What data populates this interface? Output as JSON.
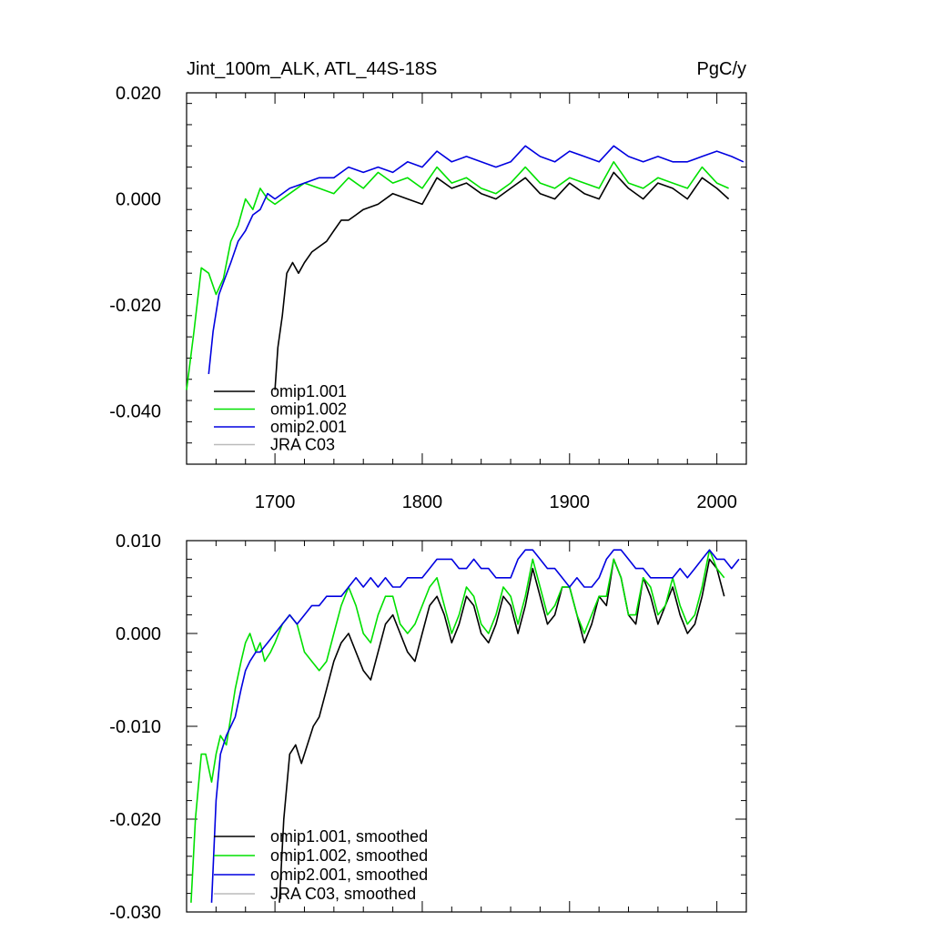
{
  "chart_data": [
    {
      "type": "line",
      "title": "Jint_100m_ALK, ATL_44S-18S",
      "units": "PgC/y",
      "xlim": [
        1640,
        2020
      ],
      "ylim": [
        -0.05,
        0.02
      ],
      "x_ticks": [
        1700,
        1800,
        1900,
        2000
      ],
      "x_tick_labels": [
        "1700",
        "1800",
        "1900",
        "2000"
      ],
      "y_ticks": [
        0.02,
        0.0,
        -0.02,
        -0.04
      ],
      "y_tick_labels": [
        "0.020",
        "0.000",
        "-0.020",
        "-0.040"
      ],
      "legend_position": "bottom-left",
      "series": [
        {
          "name": "omip1.001",
          "color": "#000000",
          "x": [
            1700,
            1702,
            1705,
            1708,
            1712,
            1716,
            1720,
            1725,
            1730,
            1735,
            1740,
            1745,
            1750,
            1755,
            1760,
            1770,
            1780,
            1790,
            1800,
            1810,
            1820,
            1830,
            1840,
            1850,
            1860,
            1870,
            1880,
            1890,
            1900,
            1910,
            1920,
            1930,
            1940,
            1950,
            1960,
            1970,
            1980,
            1990,
            2000,
            2008
          ],
          "y": [
            -0.036,
            -0.028,
            -0.022,
            -0.014,
            -0.012,
            -0.014,
            -0.012,
            -0.01,
            -0.009,
            -0.008,
            -0.006,
            -0.004,
            -0.004,
            -0.003,
            -0.002,
            -0.001,
            0.001,
            0.0,
            -0.001,
            0.004,
            0.002,
            0.003,
            0.001,
            0.0,
            0.002,
            0.004,
            0.001,
            0.0,
            0.003,
            0.001,
            0.0,
            0.005,
            0.002,
            0.0,
            0.003,
            0.002,
            0.0,
            0.004,
            0.002,
            0.0
          ]
        },
        {
          "name": "omip1.002",
          "color": "#00e000",
          "x": [
            1640,
            1645,
            1650,
            1655,
            1660,
            1665,
            1670,
            1675,
            1680,
            1685,
            1690,
            1695,
            1700,
            1710,
            1720,
            1730,
            1740,
            1750,
            1760,
            1770,
            1780,
            1790,
            1800,
            1810,
            1820,
            1830,
            1840,
            1850,
            1860,
            1870,
            1880,
            1890,
            1900,
            1910,
            1920,
            1930,
            1940,
            1950,
            1960,
            1970,
            1980,
            1990,
            2000,
            2008
          ],
          "y": [
            -0.036,
            -0.025,
            -0.013,
            -0.014,
            -0.018,
            -0.015,
            -0.008,
            -0.005,
            0.0,
            -0.002,
            0.002,
            0.0,
            -0.001,
            0.001,
            0.003,
            0.002,
            0.001,
            0.004,
            0.002,
            0.005,
            0.003,
            0.004,
            0.002,
            0.006,
            0.003,
            0.004,
            0.002,
            0.001,
            0.003,
            0.006,
            0.003,
            0.002,
            0.004,
            0.003,
            0.002,
            0.007,
            0.003,
            0.002,
            0.004,
            0.003,
            0.002,
            0.006,
            0.003,
            0.002
          ]
        },
        {
          "name": "omip2.001",
          "color": "#0000e0",
          "x": [
            1655,
            1658,
            1662,
            1666,
            1670,
            1675,
            1680,
            1685,
            1690,
            1695,
            1700,
            1710,
            1720,
            1730,
            1740,
            1750,
            1760,
            1770,
            1780,
            1790,
            1800,
            1810,
            1820,
            1830,
            1840,
            1850,
            1860,
            1870,
            1880,
            1890,
            1900,
            1910,
            1920,
            1930,
            1940,
            1950,
            1960,
            1970,
            1980,
            1990,
            2000,
            2010,
            2018
          ],
          "y": [
            -0.033,
            -0.025,
            -0.018,
            -0.015,
            -0.012,
            -0.008,
            -0.006,
            -0.003,
            -0.002,
            0.001,
            0.0,
            0.002,
            0.003,
            0.004,
            0.004,
            0.006,
            0.005,
            0.006,
            0.005,
            0.007,
            0.006,
            0.009,
            0.007,
            0.008,
            0.007,
            0.006,
            0.007,
            0.01,
            0.008,
            0.007,
            0.009,
            0.008,
            0.007,
            0.01,
            0.008,
            0.007,
            0.008,
            0.007,
            0.007,
            0.008,
            0.009,
            0.008,
            0.007
          ]
        },
        {
          "name": "JRA C03",
          "color": "#bbbbbb",
          "x": [],
          "y": []
        }
      ]
    },
    {
      "type": "line",
      "title": "",
      "xlim": [
        1640,
        2020
      ],
      "ylim": [
        -0.03,
        0.01
      ],
      "x_ticks": [
        1700,
        1800,
        1900,
        2000
      ],
      "y_ticks": [
        0.01,
        0.0,
        -0.01,
        -0.02,
        -0.03
      ],
      "y_tick_labels": [
        "0.010",
        "0.000",
        "-0.010",
        "-0.020",
        "-0.030"
      ],
      "legend_position": "bottom-left",
      "series": [
        {
          "name": "omip1.001, smoothed",
          "color": "#000000",
          "x": [
            1703,
            1706,
            1710,
            1714,
            1718,
            1722,
            1726,
            1730,
            1735,
            1740,
            1745,
            1750,
            1755,
            1760,
            1765,
            1770,
            1775,
            1780,
            1785,
            1790,
            1795,
            1800,
            1805,
            1810,
            1815,
            1820,
            1825,
            1830,
            1835,
            1840,
            1845,
            1850,
            1855,
            1860,
            1865,
            1870,
            1875,
            1880,
            1885,
            1890,
            1895,
            1900,
            1905,
            1910,
            1915,
            1920,
            1925,
            1930,
            1935,
            1940,
            1945,
            1950,
            1955,
            1960,
            1965,
            1970,
            1975,
            1980,
            1985,
            1990,
            1995,
            2000,
            2005
          ],
          "y": [
            -0.029,
            -0.02,
            -0.013,
            -0.012,
            -0.014,
            -0.012,
            -0.01,
            -0.009,
            -0.006,
            -0.003,
            -0.001,
            0.0,
            -0.002,
            -0.004,
            -0.005,
            -0.002,
            0.001,
            0.002,
            0.0,
            -0.002,
            -0.003,
            0.0,
            0.003,
            0.004,
            0.002,
            -0.001,
            0.001,
            0.004,
            0.003,
            0.0,
            -0.001,
            0.001,
            0.004,
            0.003,
            0.0,
            0.003,
            0.007,
            0.004,
            0.001,
            0.002,
            0.005,
            0.005,
            0.002,
            -0.001,
            0.001,
            0.004,
            0.003,
            0.008,
            0.006,
            0.002,
            0.001,
            0.006,
            0.004,
            0.001,
            0.003,
            0.005,
            0.002,
            0.0,
            0.001,
            0.004,
            0.008,
            0.007,
            0.004
          ]
        },
        {
          "name": "omip1.002, smoothed",
          "color": "#00e000",
          "x": [
            1643,
            1646,
            1650,
            1653,
            1657,
            1660,
            1663,
            1667,
            1670,
            1673,
            1677,
            1680,
            1683,
            1687,
            1690,
            1693,
            1697,
            1700,
            1705,
            1710,
            1715,
            1720,
            1725,
            1730,
            1735,
            1740,
            1745,
            1750,
            1755,
            1760,
            1765,
            1770,
            1775,
            1780,
            1785,
            1790,
            1795,
            1800,
            1805,
            1810,
            1815,
            1820,
            1825,
            1830,
            1835,
            1840,
            1845,
            1850,
            1855,
            1860,
            1865,
            1870,
            1875,
            1880,
            1885,
            1890,
            1895,
            1900,
            1905,
            1910,
            1915,
            1920,
            1925,
            1930,
            1935,
            1940,
            1945,
            1950,
            1955,
            1960,
            1965,
            1970,
            1975,
            1980,
            1985,
            1990,
            1995,
            2000,
            2005
          ],
          "y": [
            -0.029,
            -0.02,
            -0.013,
            -0.013,
            -0.016,
            -0.013,
            -0.011,
            -0.012,
            -0.009,
            -0.006,
            -0.003,
            -0.001,
            0.0,
            -0.002,
            -0.001,
            -0.003,
            -0.002,
            -0.001,
            0.001,
            0.002,
            0.001,
            -0.002,
            -0.003,
            -0.004,
            -0.003,
            0.0,
            0.003,
            0.005,
            0.003,
            0.0,
            -0.001,
            0.002,
            0.004,
            0.004,
            0.001,
            0.0,
            0.001,
            0.003,
            0.005,
            0.006,
            0.003,
            0.0,
            0.002,
            0.005,
            0.004,
            0.001,
            0.0,
            0.002,
            0.005,
            0.004,
            0.001,
            0.004,
            0.008,
            0.005,
            0.002,
            0.003,
            0.005,
            0.005,
            0.002,
            0.0,
            0.002,
            0.004,
            0.004,
            0.008,
            0.006,
            0.002,
            0.002,
            0.006,
            0.005,
            0.002,
            0.003,
            0.006,
            0.003,
            0.001,
            0.002,
            0.005,
            0.009,
            0.007,
            0.006
          ]
        },
        {
          "name": "omip2.001, smoothed",
          "color": "#0000e0",
          "x": [
            1657,
            1660,
            1663,
            1667,
            1670,
            1673,
            1677,
            1680,
            1683,
            1687,
            1690,
            1695,
            1700,
            1705,
            1710,
            1715,
            1720,
            1725,
            1730,
            1735,
            1740,
            1745,
            1750,
            1755,
            1760,
            1765,
            1770,
            1775,
            1780,
            1785,
            1790,
            1795,
            1800,
            1805,
            1810,
            1815,
            1820,
            1825,
            1830,
            1835,
            1840,
            1845,
            1850,
            1855,
            1860,
            1865,
            1870,
            1875,
            1880,
            1885,
            1890,
            1895,
            1900,
            1905,
            1910,
            1915,
            1920,
            1925,
            1930,
            1935,
            1940,
            1945,
            1950,
            1955,
            1960,
            1965,
            1970,
            1975,
            1980,
            1985,
            1990,
            1995,
            2000,
            2005,
            2010,
            2015
          ],
          "y": [
            -0.029,
            -0.018,
            -0.013,
            -0.011,
            -0.01,
            -0.009,
            -0.006,
            -0.004,
            -0.003,
            -0.002,
            -0.002,
            -0.001,
            0.0,
            0.001,
            0.002,
            0.001,
            0.002,
            0.003,
            0.003,
            0.004,
            0.004,
            0.004,
            0.005,
            0.006,
            0.005,
            0.006,
            0.005,
            0.006,
            0.005,
            0.005,
            0.006,
            0.006,
            0.006,
            0.007,
            0.008,
            0.008,
            0.008,
            0.007,
            0.007,
            0.008,
            0.007,
            0.007,
            0.006,
            0.006,
            0.006,
            0.008,
            0.009,
            0.009,
            0.008,
            0.007,
            0.007,
            0.006,
            0.005,
            0.006,
            0.005,
            0.005,
            0.006,
            0.008,
            0.009,
            0.009,
            0.008,
            0.007,
            0.007,
            0.006,
            0.006,
            0.006,
            0.006,
            0.007,
            0.006,
            0.007,
            0.008,
            0.009,
            0.008,
            0.008,
            0.007,
            0.008
          ]
        },
        {
          "name": "JRA C03, smoothed",
          "color": "#bbbbbb",
          "x": [],
          "y": []
        }
      ]
    }
  ]
}
